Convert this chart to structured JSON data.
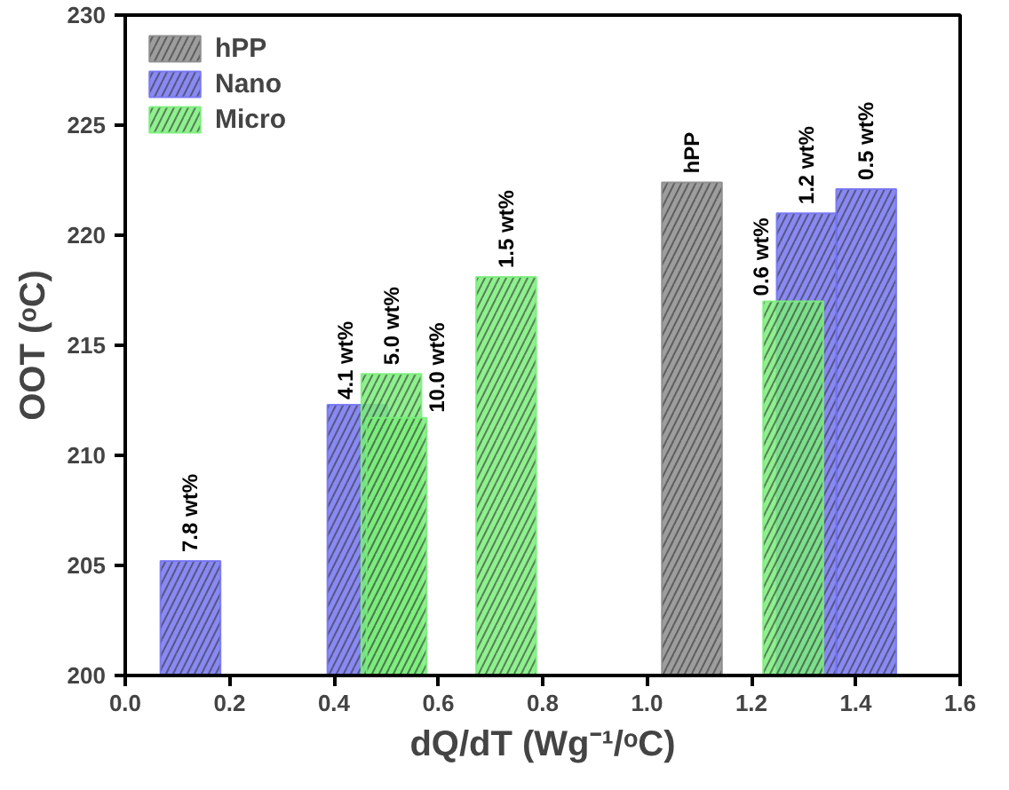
{
  "chart_data": {
    "type": "bar",
    "xlabel": "dQ/dT (Wg⁻¹/ᵒC)",
    "ylabel": "OOT (ᵒC)",
    "xlim": [
      0,
      1.6
    ],
    "ylim": [
      200,
      230
    ],
    "xticks": [
      {
        "value": 0,
        "label": "0.0"
      },
      0.2,
      0.4,
      0.6,
      0.8,
      {
        "value": 1,
        "label": "1.0"
      },
      1.2,
      1.4,
      1.6
    ],
    "yticks": [
      200,
      205,
      210,
      215,
      220,
      225,
      230
    ],
    "grid": false,
    "legend": "top left",
    "series": [
      {
        "name": "hPP",
        "color": "#8c8c8c",
        "x": [
          1.086
        ],
        "values": [
          222.4
        ]
      },
      {
        "name": "Nano",
        "color": "#7474f2",
        "x": [
          0.125,
          0.445,
          1.306,
          1.42
        ],
        "values": [
          205.2,
          212.3,
          221.0,
          222.1
        ]
      },
      {
        "name": "Micro",
        "color": "#7aee7a",
        "x": [
          0.51,
          0.52,
          0.73,
          1.28
        ],
        "values": [
          213.7,
          211.7,
          218.1,
          217.0
        ]
      }
    ],
    "annotations": [
      {
        "text": "hPP",
        "x": 1.086,
        "y": 222.4
      },
      {
        "text": "7.8 wt%",
        "x": 0.125,
        "y": 205.2
      },
      {
        "text": "4.1 wt%",
        "x": 0.445,
        "y": 212.3
      },
      {
        "text": "1.2 wt%",
        "x": 1.306,
        "y": 221.0
      },
      {
        "text": "0.5 wt%",
        "x": 1.42,
        "y": 222.1
      },
      {
        "text": "5.0 wt%",
        "x": 0.51,
        "y": 213.7
      },
      {
        "text": "10.0 wt%",
        "x": 0.52,
        "y": 211.7
      },
      {
        "text": "1.5 wt%",
        "x": 0.73,
        "y": 218.1
      },
      {
        "text": "0.6 wt%",
        "x": 1.28,
        "y": 217.0
      }
    ]
  }
}
